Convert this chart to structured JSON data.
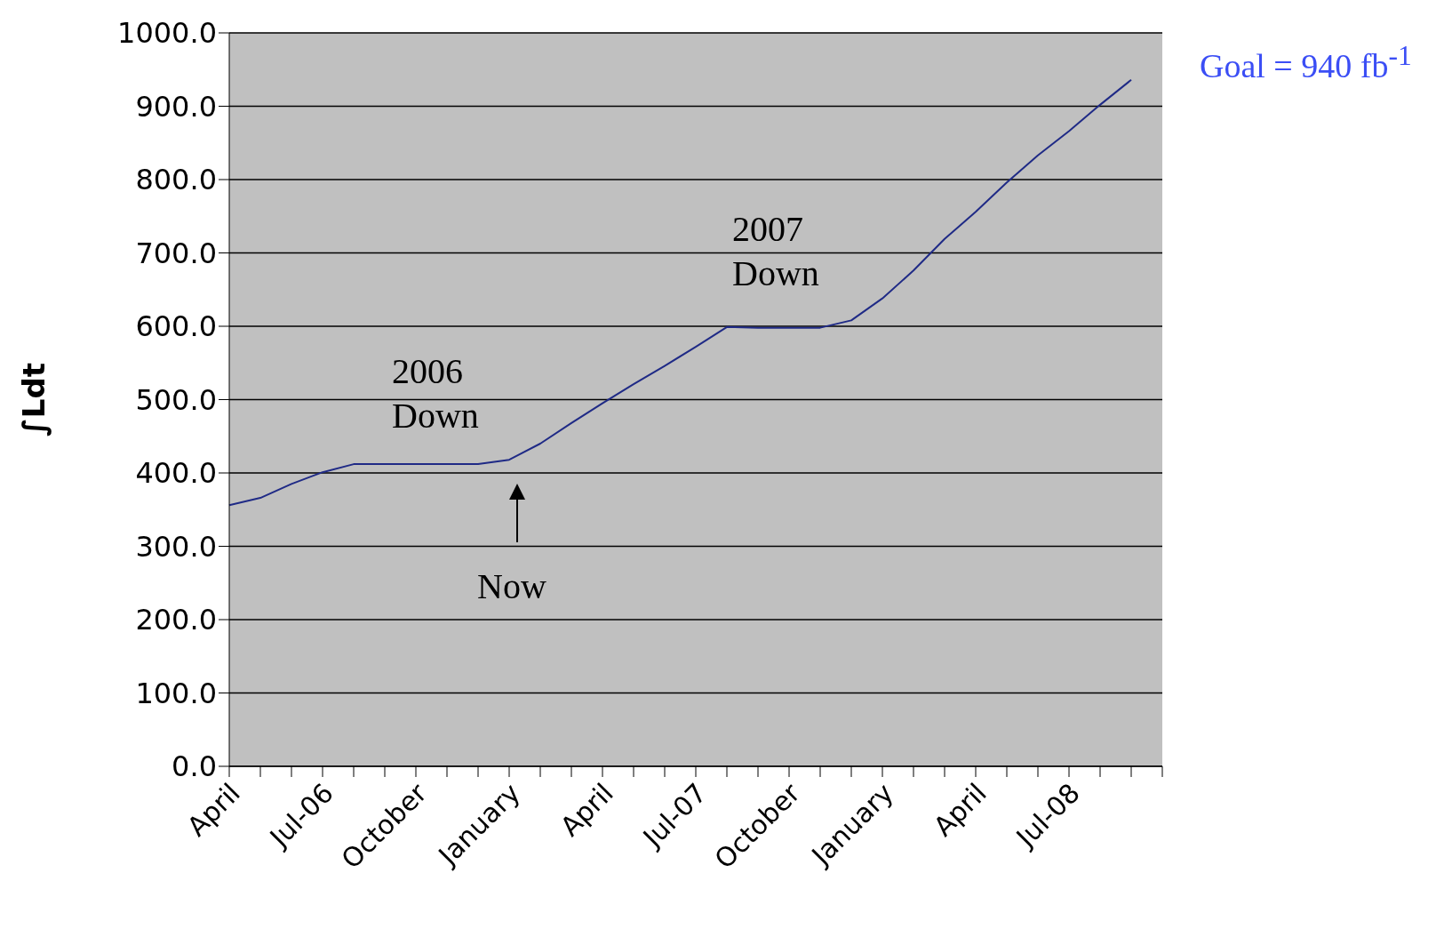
{
  "chart_data": {
    "type": "line",
    "ylabel": "∫Ldt",
    "categories": [
      "April",
      null,
      null,
      "Jul-06",
      null,
      null,
      "October",
      null,
      null,
      "January",
      null,
      null,
      "April",
      null,
      null,
      "Jul-07",
      null,
      null,
      "October",
      null,
      null,
      "January",
      null,
      null,
      "April",
      null,
      null,
      "Jul-08",
      null,
      null,
      null
    ],
    "series": [
      {
        "color": "#1f2a86",
        "values": [
          356,
          366,
          385,
          401,
          412,
          412,
          412,
          412,
          412,
          418,
          440,
          468,
          495,
          521,
          546,
          572,
          599,
          598,
          598,
          598,
          608,
          638,
          676,
          719,
          756,
          796,
          833,
          866,
          902,
          936,
          null
        ]
      }
    ],
    "ylim": [
      0,
      1000
    ],
    "yticks": [
      {
        "value": 0,
        "label": "0.0"
      },
      {
        "value": 100,
        "label": "100.0"
      },
      {
        "value": 200,
        "label": "200.0"
      },
      {
        "value": 300,
        "label": "300.0"
      },
      {
        "value": 400,
        "label": "400.0"
      },
      {
        "value": 500,
        "label": "500.0"
      },
      {
        "value": 600,
        "label": "600.0"
      },
      {
        "value": 700,
        "label": "700.0"
      },
      {
        "value": 800,
        "label": "800.0"
      },
      {
        "value": 900,
        "label": "900.0"
      },
      {
        "value": 1000,
        "label": "1000.0"
      }
    ],
    "grid": "y",
    "marker": "none",
    "line_style": "solid",
    "annotations": [
      "2006\nDown",
      "2007\nDown",
      "Now",
      "Goal = 940 fb$^{-1}$"
    ]
  }
}
